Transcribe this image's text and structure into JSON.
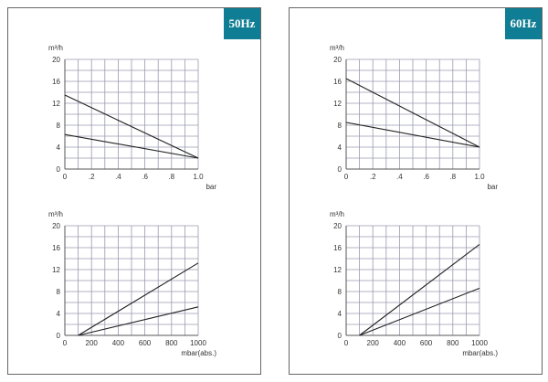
{
  "panels": [
    {
      "badge": "50Hz",
      "charts": [
        {
          "ylabel": "m³/h",
          "xlabel": "bar",
          "xlim": [
            0,
            1.0
          ],
          "ylim": [
            0,
            20
          ],
          "xticks": [
            0,
            0.2,
            0.4,
            0.6,
            0.8,
            1.0
          ],
          "xtick_labels": [
            "0",
            ".2",
            ".4",
            ".6",
            ".8",
            "1.0"
          ],
          "yticks": [
            0,
            4,
            8,
            12,
            16,
            20
          ],
          "ytick_labels": [
            "0",
            "4",
            "8",
            "12",
            "16",
            "20"
          ]
        },
        {
          "ylabel": "m³/h",
          "xlabel": "mbar(abs.)",
          "xlim": [
            0,
            1000
          ],
          "ylim": [
            0,
            20
          ],
          "xticks": [
            0,
            200,
            400,
            600,
            800,
            1000
          ],
          "xtick_labels": [
            "0",
            "200",
            "400",
            "600",
            "800",
            "1000"
          ],
          "yticks": [
            0,
            4,
            8,
            12,
            16,
            20
          ],
          "ytick_labels": [
            "0",
            "4",
            "8",
            "12",
            "16",
            "20"
          ]
        }
      ]
    },
    {
      "badge": "60Hz",
      "charts": [
        {
          "ylabel": "m³/h",
          "xlabel": "bar",
          "xlim": [
            0,
            1.0
          ],
          "ylim": [
            0,
            20
          ],
          "xticks": [
            0,
            0.2,
            0.4,
            0.6,
            0.8,
            1.0
          ],
          "xtick_labels": [
            "0",
            ".2",
            ".4",
            ".6",
            ".8",
            "1.0"
          ],
          "yticks": [
            0,
            4,
            8,
            12,
            16,
            20
          ],
          "ytick_labels": [
            "0",
            "4",
            "8",
            "12",
            "16",
            "20"
          ]
        },
        {
          "ylabel": "m³/h",
          "xlabel": "mbar(abs.)",
          "xlim": [
            0,
            1000
          ],
          "ylim": [
            0,
            20
          ],
          "xticks": [
            0,
            200,
            400,
            600,
            800,
            1000
          ],
          "xtick_labels": [
            "0",
            "200",
            "400",
            "600",
            "800",
            "1000"
          ],
          "yticks": [
            0,
            4,
            8,
            12,
            16,
            20
          ],
          "ytick_labels": [
            "0",
            "4",
            "8",
            "12",
            "16",
            "20"
          ]
        }
      ]
    }
  ],
  "chart_data": [
    {
      "type": "line",
      "panel": "50Hz",
      "xlabel": "bar",
      "ylabel": "m³/h",
      "xlim": [
        0,
        1.0
      ],
      "ylim": [
        0,
        20
      ],
      "grid": true,
      "series": [
        {
          "x": [
            0,
            1.0
          ],
          "y": [
            13.5,
            2.0
          ]
        },
        {
          "x": [
            0,
            1.0
          ],
          "y": [
            6.3,
            2.0
          ]
        }
      ]
    },
    {
      "type": "line",
      "panel": "50Hz",
      "xlabel": "mbar(abs.)",
      "ylabel": "m³/h",
      "xlim": [
        0,
        1000
      ],
      "ylim": [
        0,
        20
      ],
      "grid": true,
      "series": [
        {
          "x": [
            100,
            1000
          ],
          "y": [
            0,
            13.2
          ]
        },
        {
          "x": [
            100,
            1000
          ],
          "y": [
            0,
            5.2
          ]
        }
      ]
    },
    {
      "type": "line",
      "panel": "60Hz",
      "xlabel": "bar",
      "ylabel": "m³/h",
      "xlim": [
        0,
        1.0
      ],
      "ylim": [
        0,
        20
      ],
      "grid": true,
      "series": [
        {
          "x": [
            0,
            1.0
          ],
          "y": [
            16.5,
            4.0
          ]
        },
        {
          "x": [
            0,
            1.0
          ],
          "y": [
            8.5,
            4.0
          ]
        }
      ]
    },
    {
      "type": "line",
      "panel": "60Hz",
      "xlabel": "mbar(abs.)",
      "ylabel": "m³/h",
      "xlim": [
        0,
        1000
      ],
      "ylim": [
        0,
        20
      ],
      "grid": true,
      "series": [
        {
          "x": [
            100,
            1000
          ],
          "y": [
            0,
            16.6
          ]
        },
        {
          "x": [
            100,
            1000
          ],
          "y": [
            0,
            8.6
          ]
        }
      ]
    }
  ]
}
